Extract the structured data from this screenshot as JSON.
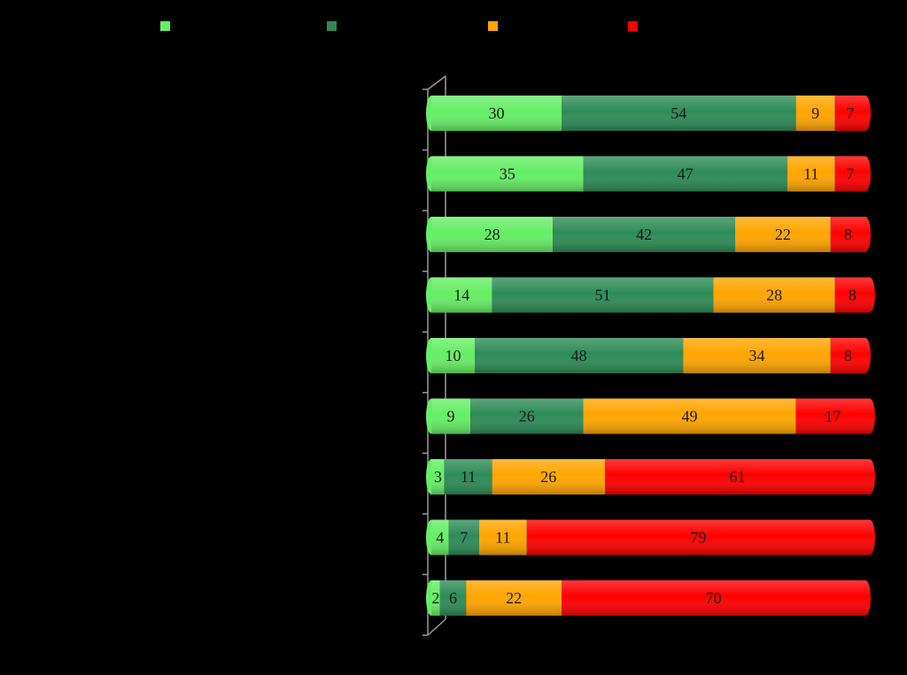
{
  "chart_data": {
    "type": "bar",
    "orientation": "horizontal",
    "stacked": "percent",
    "style": "3d-cylinder",
    "background": "#000000",
    "legend_position": "top",
    "xlim": [
      0,
      100
    ],
    "categories": [
      "",
      "",
      "",
      "",
      "",
      "",
      "",
      "",
      ""
    ],
    "series": [
      {
        "color": "#66ee66",
        "values": [
          30,
          35,
          28,
          14,
          10,
          9,
          3,
          4,
          2
        ]
      },
      {
        "color": "#2e8b57",
        "values": [
          54,
          47,
          42,
          51,
          48,
          26,
          11,
          7,
          6
        ]
      },
      {
        "color": "#ffa500",
        "values": [
          9,
          11,
          22,
          28,
          34,
          49,
          26,
          11,
          22
        ]
      },
      {
        "color": "#ff0000",
        "values": [
          7,
          7,
          8,
          8,
          8,
          17,
          61,
          79,
          70
        ]
      }
    ],
    "value_labels": [
      [
        "30",
        "54",
        "9",
        "7"
      ],
      [
        "35",
        "47",
        "11",
        "7"
      ],
      [
        "28",
        "42",
        "22",
        "8"
      ],
      [
        "14",
        "51",
        "28",
        "8"
      ],
      [
        "10",
        "48",
        "34",
        "8"
      ],
      [
        "9",
        "26",
        "49",
        "17"
      ],
      [
        "3",
        "11",
        "26",
        "61"
      ],
      [
        "4",
        "7",
        "11",
        "79"
      ],
      [
        "2",
        "6",
        "22",
        "70"
      ]
    ]
  }
}
